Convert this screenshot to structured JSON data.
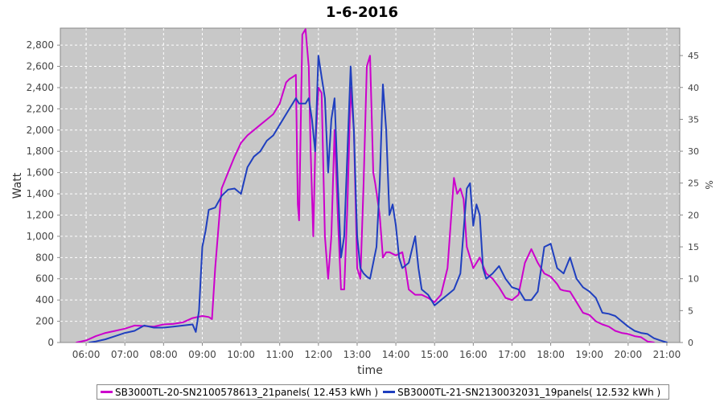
{
  "chart_data": {
    "type": "line",
    "title": "1-6-2016",
    "xlabel": "time",
    "ylabel": "Watt",
    "y2label": "%",
    "x_ticks": [
      "06:00",
      "07:00",
      "08:00",
      "09:00",
      "10:00",
      "11:00",
      "12:00",
      "13:00",
      "14:00",
      "15:00",
      "16:00",
      "17:00",
      "18:00",
      "19:00",
      "20:00",
      "21:00"
    ],
    "xlim": [
      "05:20",
      "21:20"
    ],
    "ylim": [
      0,
      2960
    ],
    "y_ticks": [
      0,
      200,
      400,
      600,
      800,
      1000,
      1200,
      1400,
      1600,
      1800,
      2000,
      2200,
      2400,
      2600,
      2800
    ],
    "y_tick_labels": [
      "0",
      "200",
      "400",
      "600",
      "800",
      "1,000",
      "1,200",
      "1,400",
      "1,600",
      "1,800",
      "2,000",
      "2,200",
      "2,400",
      "2,600",
      "2,800"
    ],
    "y2lim": [
      0,
      49.3
    ],
    "y2_ticks": [
      0,
      5,
      10,
      15,
      20,
      25,
      30,
      35,
      40,
      45
    ],
    "grid": true,
    "legend_position": "bottom",
    "series": [
      {
        "name": "SB3000TL-20-SN2100578613_21panels( 12.453 kWh )",
        "color": "#cc00cc",
        "points": [
          [
            "05:45",
            0
          ],
          [
            "06:00",
            20
          ],
          [
            "06:15",
            60
          ],
          [
            "06:30",
            90
          ],
          [
            "06:45",
            110
          ],
          [
            "07:00",
            130
          ],
          [
            "07:15",
            160
          ],
          [
            "07:30",
            155
          ],
          [
            "07:45",
            150
          ],
          [
            "08:00",
            170
          ],
          [
            "08:15",
            175
          ],
          [
            "08:30",
            190
          ],
          [
            "08:45",
            230
          ],
          [
            "09:00",
            250
          ],
          [
            "09:10",
            240
          ],
          [
            "09:15",
            220
          ],
          [
            "09:20",
            700
          ],
          [
            "09:30",
            1450
          ],
          [
            "09:40",
            1600
          ],
          [
            "09:50",
            1750
          ],
          [
            "10:00",
            1880
          ],
          [
            "10:10",
            1950
          ],
          [
            "10:20",
            2000
          ],
          [
            "10:30",
            2050
          ],
          [
            "10:40",
            2100
          ],
          [
            "10:50",
            2150
          ],
          [
            "11:00",
            2250
          ],
          [
            "11:05",
            2350
          ],
          [
            "11:10",
            2450
          ],
          [
            "11:15",
            2480
          ],
          [
            "11:20",
            2500
          ],
          [
            "11:25",
            2520
          ],
          [
            "11:28",
            1300
          ],
          [
            "11:30",
            1150
          ],
          [
            "11:35",
            2900
          ],
          [
            "11:40",
            2950
          ],
          [
            "11:45",
            2600
          ],
          [
            "11:48",
            1800
          ],
          [
            "11:52",
            1000
          ],
          [
            "11:55",
            1800
          ],
          [
            "12:00",
            2400
          ],
          [
            "12:05",
            2350
          ],
          [
            "12:10",
            1000
          ],
          [
            "12:15",
            600
          ],
          [
            "12:20",
            1000
          ],
          [
            "12:25",
            2000
          ],
          [
            "12:30",
            1200
          ],
          [
            "12:35",
            500
          ],
          [
            "12:40",
            500
          ],
          [
            "12:45",
            1300
          ],
          [
            "12:50",
            2400
          ],
          [
            "12:55",
            2000
          ],
          [
            "13:00",
            700
          ],
          [
            "13:05",
            600
          ],
          [
            "13:10",
            1500
          ],
          [
            "13:15",
            2600
          ],
          [
            "13:20",
            2700
          ],
          [
            "13:25",
            1600
          ],
          [
            "13:28",
            1500
          ],
          [
            "13:35",
            1200
          ],
          [
            "13:40",
            800
          ],
          [
            "13:45",
            850
          ],
          [
            "13:50",
            850
          ],
          [
            "14:00",
            820
          ],
          [
            "14:10",
            850
          ],
          [
            "14:15",
            700
          ],
          [
            "14:20",
            500
          ],
          [
            "14:30",
            450
          ],
          [
            "14:40",
            450
          ],
          [
            "14:50",
            420
          ],
          [
            "15:00",
            380
          ],
          [
            "15:10",
            450
          ],
          [
            "15:20",
            700
          ],
          [
            "15:30",
            1550
          ],
          [
            "15:35",
            1400
          ],
          [
            "15:40",
            1450
          ],
          [
            "15:45",
            1350
          ],
          [
            "15:50",
            900
          ],
          [
            "16:00",
            700
          ],
          [
            "16:10",
            800
          ],
          [
            "16:20",
            650
          ],
          [
            "16:30",
            600
          ],
          [
            "16:40",
            520
          ],
          [
            "16:50",
            420
          ],
          [
            "17:00",
            400
          ],
          [
            "17:10",
            450
          ],
          [
            "17:20",
            750
          ],
          [
            "17:30",
            880
          ],
          [
            "17:40",
            750
          ],
          [
            "17:50",
            650
          ],
          [
            "18:00",
            620
          ],
          [
            "18:10",
            550
          ],
          [
            "18:15",
            500
          ],
          [
            "18:20",
            490
          ],
          [
            "18:30",
            480
          ],
          [
            "18:40",
            380
          ],
          [
            "18:50",
            280
          ],
          [
            "19:00",
            260
          ],
          [
            "19:10",
            200
          ],
          [
            "19:20",
            170
          ],
          [
            "19:30",
            150
          ],
          [
            "19:40",
            110
          ],
          [
            "19:50",
            90
          ],
          [
            "20:00",
            80
          ],
          [
            "20:10",
            60
          ],
          [
            "20:20",
            50
          ],
          [
            "20:30",
            10
          ],
          [
            "20:40",
            0
          ]
        ]
      },
      {
        "name": "SB3000TL-21-SN2130032031_19panels( 12.532 kWh )",
        "color": "#1f3fbf",
        "points": [
          [
            "06:05",
            0
          ],
          [
            "06:15",
            10
          ],
          [
            "06:30",
            30
          ],
          [
            "06:45",
            60
          ],
          [
            "07:00",
            90
          ],
          [
            "07:15",
            110
          ],
          [
            "07:30",
            160
          ],
          [
            "07:45",
            140
          ],
          [
            "08:00",
            140
          ],
          [
            "08:15",
            150
          ],
          [
            "08:30",
            160
          ],
          [
            "08:45",
            170
          ],
          [
            "08:50",
            100
          ],
          [
            "08:55",
            300
          ],
          [
            "09:00",
            900
          ],
          [
            "09:05",
            1050
          ],
          [
            "09:10",
            1250
          ],
          [
            "09:20",
            1270
          ],
          [
            "09:30",
            1380
          ],
          [
            "09:40",
            1440
          ],
          [
            "09:50",
            1450
          ],
          [
            "10:00",
            1400
          ],
          [
            "10:10",
            1650
          ],
          [
            "10:20",
            1750
          ],
          [
            "10:30",
            1800
          ],
          [
            "10:40",
            1900
          ],
          [
            "10:50",
            1950
          ],
          [
            "11:00",
            2050
          ],
          [
            "11:10",
            2150
          ],
          [
            "11:15",
            2200
          ],
          [
            "11:20",
            2250
          ],
          [
            "11:25",
            2300
          ],
          [
            "11:30",
            2250
          ],
          [
            "11:40",
            2250
          ],
          [
            "11:45",
            2300
          ],
          [
            "11:50",
            2100
          ],
          [
            "11:55",
            1800
          ],
          [
            "12:00",
            2700
          ],
          [
            "12:05",
            2500
          ],
          [
            "12:10",
            2300
          ],
          [
            "12:15",
            1600
          ],
          [
            "12:20",
            2100
          ],
          [
            "12:25",
            2300
          ],
          [
            "12:30",
            1500
          ],
          [
            "12:35",
            800
          ],
          [
            "12:40",
            1000
          ],
          [
            "12:45",
            1800
          ],
          [
            "12:50",
            2600
          ],
          [
            "12:55",
            2000
          ],
          [
            "13:00",
            1000
          ],
          [
            "13:05",
            700
          ],
          [
            "13:10",
            650
          ],
          [
            "13:15",
            620
          ],
          [
            "13:20",
            600
          ],
          [
            "13:30",
            900
          ],
          [
            "13:35",
            1500
          ],
          [
            "13:40",
            2430
          ],
          [
            "13:45",
            2000
          ],
          [
            "13:50",
            1200
          ],
          [
            "13:55",
            1300
          ],
          [
            "14:00",
            1100
          ],
          [
            "14:05",
            800
          ],
          [
            "14:10",
            700
          ],
          [
            "14:20",
            750
          ],
          [
            "14:30",
            1000
          ],
          [
            "14:35",
            700
          ],
          [
            "14:40",
            500
          ],
          [
            "14:50",
            450
          ],
          [
            "15:00",
            350
          ],
          [
            "15:10",
            400
          ],
          [
            "15:20",
            450
          ],
          [
            "15:30",
            500
          ],
          [
            "15:40",
            650
          ],
          [
            "15:50",
            1450
          ],
          [
            "15:55",
            1500
          ],
          [
            "16:00",
            1100
          ],
          [
            "16:05",
            1300
          ],
          [
            "16:10",
            1200
          ],
          [
            "16:15",
            700
          ],
          [
            "16:20",
            600
          ],
          [
            "16:30",
            650
          ],
          [
            "16:40",
            720
          ],
          [
            "16:50",
            600
          ],
          [
            "17:00",
            520
          ],
          [
            "17:10",
            500
          ],
          [
            "17:20",
            400
          ],
          [
            "17:30",
            400
          ],
          [
            "17:40",
            480
          ],
          [
            "17:50",
            900
          ],
          [
            "18:00",
            930
          ],
          [
            "18:10",
            700
          ],
          [
            "18:20",
            650
          ],
          [
            "18:30",
            800
          ],
          [
            "18:40",
            600
          ],
          [
            "18:50",
            520
          ],
          [
            "19:00",
            480
          ],
          [
            "19:10",
            420
          ],
          [
            "19:20",
            280
          ],
          [
            "19:30",
            270
          ],
          [
            "19:40",
            250
          ],
          [
            "19:50",
            200
          ],
          [
            "20:00",
            150
          ],
          [
            "20:10",
            110
          ],
          [
            "20:20",
            90
          ],
          [
            "20:30",
            80
          ],
          [
            "20:40",
            40
          ],
          [
            "20:50",
            20
          ],
          [
            "21:00",
            0
          ]
        ]
      }
    ]
  }
}
